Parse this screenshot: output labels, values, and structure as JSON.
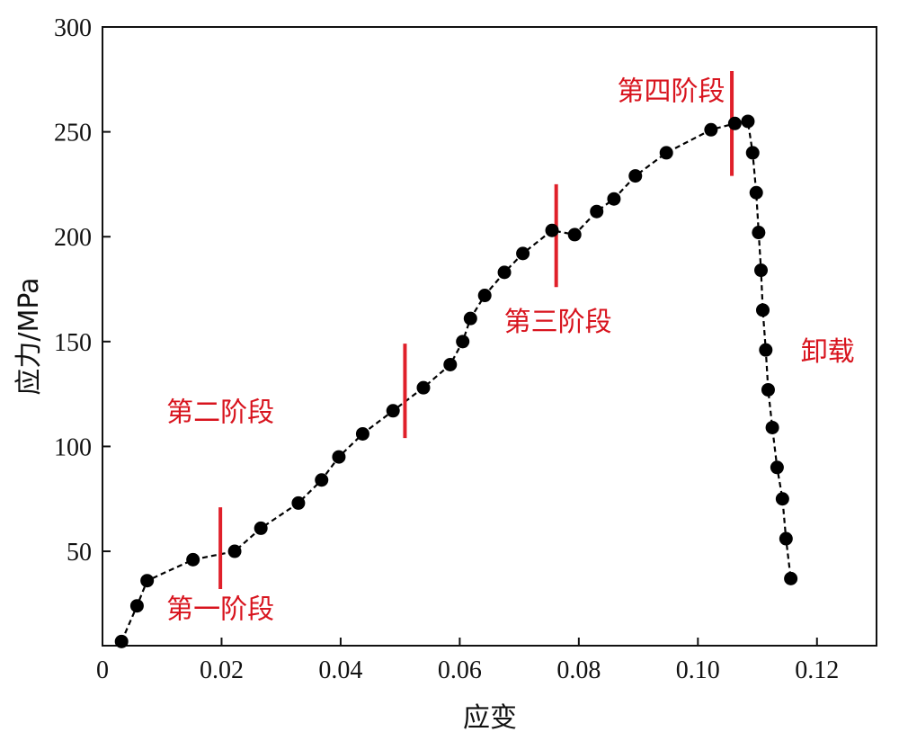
{
  "chart_data": {
    "type": "line",
    "xlabel": "应变",
    "ylabel": "应力/MPa",
    "xlim": [
      0,
      0.13
    ],
    "ylim": [
      5,
      300
    ],
    "xticks": [
      0,
      0.02,
      0.04,
      0.06,
      0.08,
      0.1,
      0.12
    ],
    "xtick_labels": [
      "0",
      "0.02",
      "0.04",
      "0.06",
      "0.08",
      "0.10",
      "0.12"
    ],
    "yticks": [
      50,
      100,
      150,
      200,
      250,
      300
    ],
    "ytick_labels": [
      "50",
      "100",
      "150",
      "200",
      "250",
      "300"
    ],
    "grid": false,
    "legend": "none",
    "series": [
      {
        "color": "#000000",
        "x": [
          0.0032,
          0.0058,
          0.0075,
          0.0152,
          0.0222,
          0.0266,
          0.0329,
          0.0368,
          0.0397,
          0.0437,
          0.0488,
          0.0539,
          0.0584,
          0.0605,
          0.0618,
          0.0642,
          0.0675,
          0.0706,
          0.0755,
          0.0793,
          0.083,
          0.0859,
          0.0895,
          0.0947,
          0.1022,
          0.1062,
          0.1084,
          0.1092,
          0.1098,
          0.1102,
          0.1106,
          0.1109,
          0.1114,
          0.1118,
          0.1125,
          0.1133,
          0.1142,
          0.1148,
          0.1156
        ],
        "y": [
          7,
          24,
          36,
          46,
          50,
          61,
          73,
          84,
          95,
          106,
          117,
          128,
          139,
          150,
          161,
          172,
          183,
          192,
          203,
          201,
          212,
          218,
          229,
          240,
          251,
          254,
          255,
          240,
          221,
          202,
          184,
          165,
          146,
          127,
          109,
          90,
          75,
          56,
          37
        ]
      }
    ],
    "stage_markers": [
      {
        "x": 0.0198,
        "y_low": 32,
        "y_high": 71
      },
      {
        "x": 0.0508,
        "y_low": 104,
        "y_high": 149
      },
      {
        "x": 0.0762,
        "y_low": 176,
        "y_high": 225
      },
      {
        "x": 0.1057,
        "y_low": 229,
        "y_high": 279
      }
    ],
    "marker_color": "#e0202a",
    "annotations": [
      {
        "text": "第一阶段",
        "x": 0.0198,
        "y": 18
      },
      {
        "text": "第二阶段",
        "x": 0.0198,
        "y": 112
      },
      {
        "text": "第三阶段",
        "x": 0.0765,
        "y": 155
      },
      {
        "text": "第四阶段",
        "x": 0.0955,
        "y": 265
      },
      {
        "text": "卸载",
        "x": 0.1218,
        "y": 141
      }
    ],
    "annotation_color": "#d8141e"
  }
}
